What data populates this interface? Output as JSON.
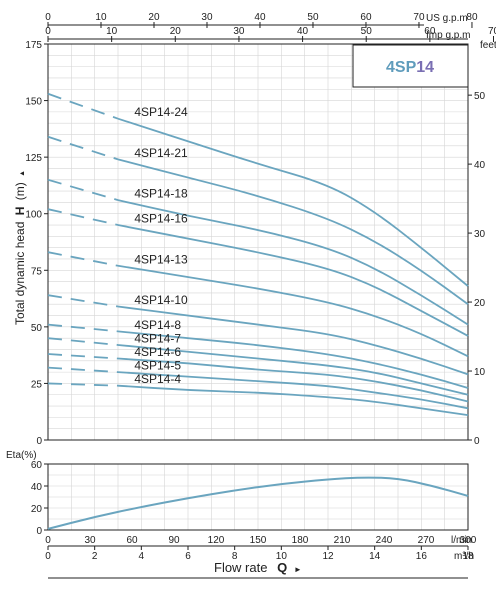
{
  "colors": {
    "curve": "#6aa5bf",
    "badge_prefix": "#5f9cbc",
    "badge_suffix": "#7a6fb3",
    "axis": "#222222",
    "grid": "#d6d6d6"
  },
  "badge": {
    "prefix": "4SP",
    "suffix": "14"
  },
  "chart_data": [
    {
      "type": "line",
      "title": "",
      "ylabel_main": "Total dynamic head",
      "ylabel_bold": "H",
      "ylabel_unit": "(m)",
      "right_unit": "feet",
      "top_units": [
        "US g.p.m",
        "Imp g.p.m"
      ],
      "ylim": [
        0,
        175
      ],
      "xlim_m3h": [
        0,
        18
      ],
      "yticks": [
        "0",
        "25",
        "50",
        "75",
        "100",
        "125",
        "150",
        "175"
      ],
      "feet_ticks": [
        "0",
        "10",
        "20",
        "30",
        "40",
        "50"
      ],
      "us_gpm_ticks": [
        "0",
        "10",
        "20",
        "30",
        "40",
        "50",
        "60",
        "70",
        "80"
      ],
      "imp_gpm_ticks": [
        "0",
        "10",
        "20",
        "30",
        "40",
        "50",
        "60",
        "70"
      ],
      "series": [
        {
          "name": "4SP14-24",
          "x": [
            0,
            3,
            6,
            9,
            12,
            14,
            16,
            18
          ],
          "y": [
            153,
            142,
            132,
            122,
            113,
            101,
            85,
            68
          ]
        },
        {
          "name": "4SP14-21",
          "x": [
            0,
            3,
            6,
            9,
            12,
            14,
            16,
            18
          ],
          "y": [
            134,
            124,
            116,
            108,
            98,
            88,
            75,
            60
          ]
        },
        {
          "name": "4SP14-18",
          "x": [
            0,
            3,
            6,
            9,
            12,
            14,
            16,
            18
          ],
          "y": [
            115,
            106,
            99,
            93,
            85,
            76,
            64,
            51
          ]
        },
        {
          "name": "4SP14-16",
          "x": [
            0,
            3,
            6,
            9,
            12,
            14,
            16,
            18
          ],
          "y": [
            102,
            95,
            89,
            83,
            76,
            68,
            57,
            46
          ]
        },
        {
          "name": "4SP14-13",
          "x": [
            0,
            3,
            6,
            9,
            12,
            14,
            16,
            18
          ],
          "y": [
            83,
            77,
            72,
            67,
            61,
            55,
            47,
            37
          ]
        },
        {
          "name": "4SP14-10",
          "x": [
            0,
            3,
            6,
            9,
            12,
            14,
            16,
            18
          ],
          "y": [
            64,
            59,
            55,
            51,
            47,
            42,
            36,
            29
          ]
        },
        {
          "name": "4SP14-8",
          "x": [
            0,
            3,
            6,
            9,
            12,
            14,
            16,
            18
          ],
          "y": [
            51,
            48,
            45,
            42,
            38,
            34,
            29,
            23
          ]
        },
        {
          "name": "4SP14-7",
          "x": [
            0,
            3,
            6,
            9,
            12,
            14,
            16,
            18
          ],
          "y": [
            45,
            42,
            39,
            36,
            33,
            30,
            25,
            20
          ]
        },
        {
          "name": "4SP14-6",
          "x": [
            0,
            3,
            6,
            9,
            12,
            14,
            16,
            18
          ],
          "y": [
            38,
            36,
            34,
            31,
            29,
            26,
            22,
            17
          ]
        },
        {
          "name": "4SP14-5",
          "x": [
            0,
            3,
            6,
            9,
            12,
            14,
            16,
            18
          ],
          "y": [
            32,
            30,
            28,
            26,
            24,
            21,
            18,
            14
          ]
        },
        {
          "name": "4SP14-4",
          "x": [
            0,
            3,
            6,
            9,
            12,
            14,
            16,
            18
          ],
          "y": [
            25,
            24,
            22,
            21,
            19,
            17,
            14,
            11
          ]
        }
      ]
    },
    {
      "type": "line",
      "ylabel": "Eta(%)",
      "ylim": [
        0,
        60
      ],
      "yticks": [
        "0",
        "20",
        "40",
        "60"
      ],
      "xlabel": "Flow rate",
      "xlabel_bold": "Q",
      "x_lmin_ticks": [
        "0",
        "30",
        "60",
        "90",
        "120",
        "150",
        "180",
        "210",
        "240",
        "270",
        "300"
      ],
      "x_lmin_unit": "l/min",
      "x_m3h_ticks": [
        "0",
        "2",
        "4",
        "6",
        "8",
        "10",
        "12",
        "14",
        "16",
        "18"
      ],
      "x_m3h_unit": "m³/h",
      "series": [
        {
          "x": [
            0,
            2,
            4,
            6,
            8,
            10,
            12,
            13.5,
            15,
            16.5,
            18
          ],
          "y": [
            1,
            12,
            21,
            29,
            36,
            42,
            46,
            48,
            47,
            40,
            31
          ]
        }
      ]
    }
  ]
}
